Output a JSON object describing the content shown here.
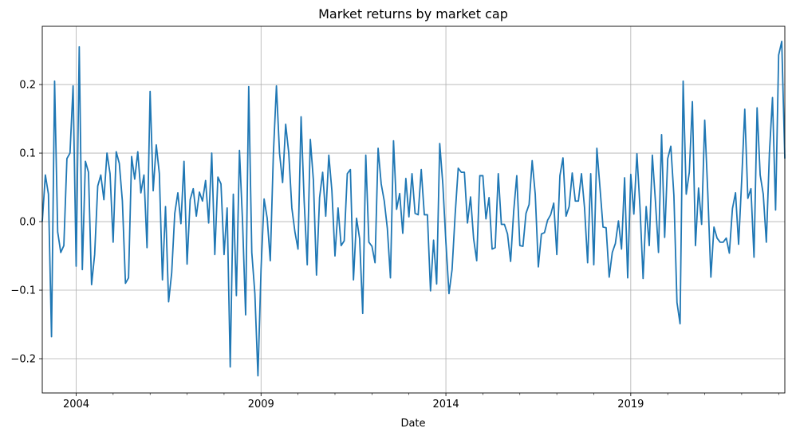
{
  "chart_data": {
    "type": "line",
    "title": "Market returns by market cap",
    "xlabel": "Date",
    "ylabel": "",
    "grid": true,
    "line_color": "#1f77b4",
    "x_start": "2003-02",
    "x_end": "2023-03",
    "x_ticks": [
      {
        "label": "2004",
        "date": "2004-01"
      },
      {
        "label": "2009",
        "date": "2009-01"
      },
      {
        "label": "2014",
        "date": "2014-01"
      },
      {
        "label": "2019",
        "date": "2019-01"
      }
    ],
    "ylim": [
      -0.25,
      0.285
    ],
    "y_ticks": [
      {
        "label": "0.2",
        "value": 0.2
      },
      {
        "label": "0.1",
        "value": 0.1
      },
      {
        "label": "0.0",
        "value": 0.0
      },
      {
        "label": "−0.1",
        "value": -0.1
      },
      {
        "label": "−0.2",
        "value": -0.2
      }
    ],
    "series": [
      {
        "values": [
          0.0,
          0.068,
          0.04,
          -0.168,
          0.205,
          -0.015,
          -0.045,
          -0.035,
          0.092,
          0.1,
          0.198,
          -0.065,
          0.255,
          -0.07,
          0.088,
          0.072,
          -0.092,
          -0.048,
          0.052,
          0.068,
          0.032,
          0.1,
          0.07,
          -0.03,
          0.102,
          0.085,
          0.03,
          -0.09,
          -0.082,
          0.095,
          0.062,
          0.102,
          0.042,
          0.068,
          -0.038,
          0.19,
          0.045,
          0.112,
          0.07,
          -0.085,
          0.022,
          -0.117,
          -0.075,
          0.012,
          0.042,
          -0.003,
          0.088,
          -0.062,
          0.032,
          0.048,
          0.008,
          0.043,
          0.03,
          0.06,
          -0.002,
          0.1,
          -0.048,
          0.065,
          0.055,
          -0.048,
          0.02,
          -0.212,
          0.04,
          -0.108,
          0.104,
          0.0,
          -0.136,
          0.197,
          -0.045,
          -0.105,
          -0.225,
          -0.07,
          0.033,
          0.005,
          -0.057,
          0.098,
          0.198,
          0.1,
          0.057,
          0.142,
          0.1,
          0.02,
          -0.015,
          -0.04,
          0.153,
          0.03,
          -0.063,
          0.12,
          0.06,
          -0.078,
          0.035,
          0.072,
          0.008,
          0.097,
          0.045,
          -0.05,
          0.02,
          -0.035,
          -0.028,
          0.07,
          0.076,
          -0.085,
          0.005,
          -0.025,
          -0.134,
          0.097,
          -0.03,
          -0.036,
          -0.06,
          0.107,
          0.055,
          0.03,
          -0.01,
          -0.082,
          0.118,
          0.018,
          0.041,
          -0.017,
          0.063,
          0.007,
          0.07,
          0.012,
          0.01,
          0.076,
          0.01,
          0.01,
          -0.101,
          -0.027,
          -0.091,
          0.114,
          0.055,
          -0.03,
          -0.105,
          -0.07,
          0.01,
          0.078,
          0.072,
          0.072,
          -0.002,
          0.036,
          -0.025,
          -0.057,
          0.067,
          0.067,
          0.004,
          0.035,
          -0.04,
          -0.038,
          0.07,
          -0.004,
          -0.004,
          -0.018,
          -0.058,
          0.015,
          0.067,
          -0.035,
          -0.036,
          0.012,
          0.025,
          0.089,
          0.04,
          -0.066,
          -0.018,
          -0.016,
          0.002,
          0.01,
          0.027,
          -0.048,
          0.067,
          0.093,
          0.008,
          0.022,
          0.071,
          0.03,
          0.03,
          0.07,
          0.02,
          -0.06,
          0.07,
          -0.063,
          0.107,
          0.05,
          -0.008,
          -0.009,
          -0.081,
          -0.045,
          -0.032,
          0.001,
          -0.04,
          0.064,
          -0.082,
          0.069,
          0.011,
          0.099,
          0.02,
          -0.083,
          0.022,
          -0.035,
          0.097,
          0.03,
          -0.045,
          0.127,
          -0.023,
          0.092,
          0.11,
          0.038,
          -0.118,
          -0.149,
          0.205,
          0.04,
          0.072,
          0.175,
          -0.035,
          0.049,
          -0.004,
          0.148,
          0.042,
          -0.081,
          -0.008,
          -0.024,
          -0.03,
          -0.03,
          -0.024,
          -0.046,
          0.019,
          0.042,
          -0.033,
          0.06,
          0.164,
          0.034,
          0.048,
          -0.052,
          0.166,
          0.068,
          0.04,
          -0.03,
          0.1,
          0.181,
          0.017,
          0.243,
          0.263,
          0.092
        ]
      }
    ]
  }
}
